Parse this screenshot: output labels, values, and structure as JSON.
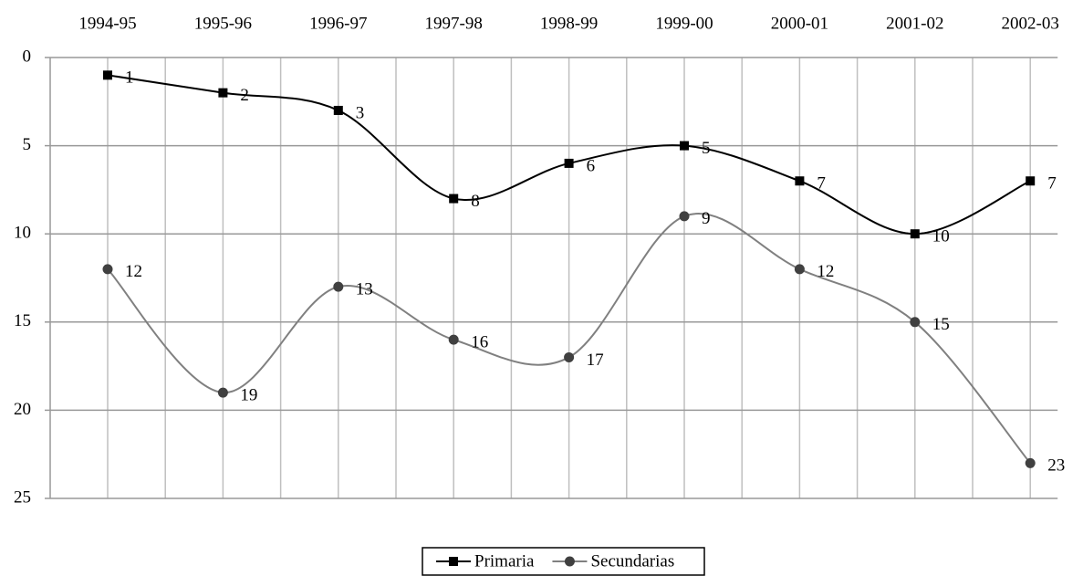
{
  "chart_data": {
    "type": "line",
    "categories": [
      "1994-95",
      "1995-96",
      "1996-97",
      "1997-98",
      "1998-99",
      "1999-00",
      "2000-01",
      "2001-02",
      "2002-03"
    ],
    "series": [
      {
        "name": "Primaria",
        "color": "#000000",
        "marker": "square",
        "marker_color": "#000000",
        "values": [
          1,
          2,
          3,
          8,
          6,
          5,
          7,
          10,
          7
        ]
      },
      {
        "name": "Secundarias",
        "color": "#808080",
        "marker": "circle",
        "marker_color": "#404040",
        "values": [
          12,
          19,
          13,
          16,
          17,
          9,
          12,
          15,
          23
        ]
      }
    ],
    "ylim": [
      0,
      25
    ],
    "yticks": [
      0,
      5,
      10,
      15,
      20,
      25
    ],
    "y_inverted": true,
    "grid": true,
    "smooth": true,
    "legend": "bottom"
  }
}
